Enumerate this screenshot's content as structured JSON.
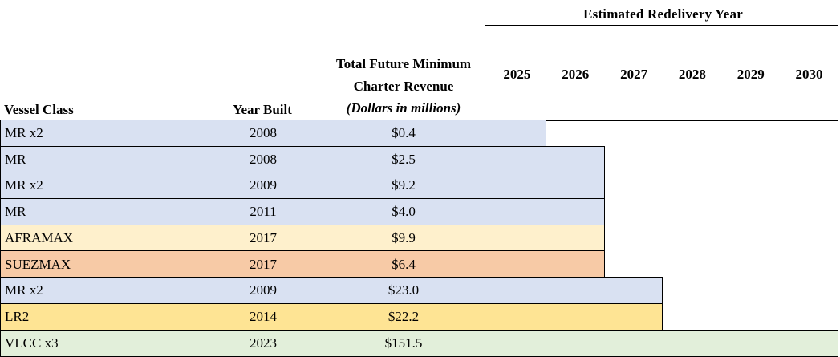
{
  "header": {
    "group_title": "Estimated Redelivery Year",
    "vessel_class_label": "Vessel Class",
    "year_built_label": "Year Built",
    "revenue_label_line1": "Total Future Minimum",
    "revenue_label_line2": "Charter Revenue",
    "revenue_label_line3": "(Dollars in millions)"
  },
  "years": [
    "2025",
    "2026",
    "2027",
    "2028",
    "2029",
    "2030"
  ],
  "chart_data": {
    "type": "bar",
    "subtype": "gantt",
    "title": "Estimated Redelivery Year",
    "x_axis": {
      "label": "Estimated Redelivery Year",
      "ticks": [
        2025,
        2026,
        2027,
        2028,
        2029,
        2030
      ]
    },
    "columns": [
      "Vessel Class",
      "Year Built",
      "Total Future Minimum Charter Revenue (Dollars in millions)"
    ],
    "rows": [
      {
        "vessel_class": "MR x2",
        "year_built": "2008",
        "revenue": "$0.4",
        "redelivery_year": 2025,
        "color": "#d9e1f2"
      },
      {
        "vessel_class": "MR",
        "year_built": "2008",
        "revenue": "$2.5",
        "redelivery_year": 2026,
        "color": "#d9e1f2"
      },
      {
        "vessel_class": "MR x2",
        "year_built": "2009",
        "revenue": "$9.2",
        "redelivery_year": 2026,
        "color": "#d9e1f2"
      },
      {
        "vessel_class": "MR",
        "year_built": "2011",
        "revenue": "$4.0",
        "redelivery_year": 2026,
        "color": "#d9e1f2"
      },
      {
        "vessel_class": "AFRAMAX",
        "year_built": "2017",
        "revenue": "$9.9",
        "redelivery_year": 2026,
        "color": "#fef0cc"
      },
      {
        "vessel_class": "SUEZMAX",
        "year_built": "2017",
        "revenue": "$6.4",
        "redelivery_year": 2026,
        "color": "#f7caa6"
      },
      {
        "vessel_class": "MR x2",
        "year_built": "2009",
        "revenue": "$23.0",
        "redelivery_year": 2027,
        "color": "#d9e1f2"
      },
      {
        "vessel_class": "LR2",
        "year_built": "2014",
        "revenue": "$22.2",
        "redelivery_year": 2027,
        "color": "#fee494"
      },
      {
        "vessel_class": "VLCC x3",
        "year_built": "2023",
        "revenue": "$151.5",
        "redelivery_year": 2030,
        "color": "#e2efda"
      }
    ]
  }
}
